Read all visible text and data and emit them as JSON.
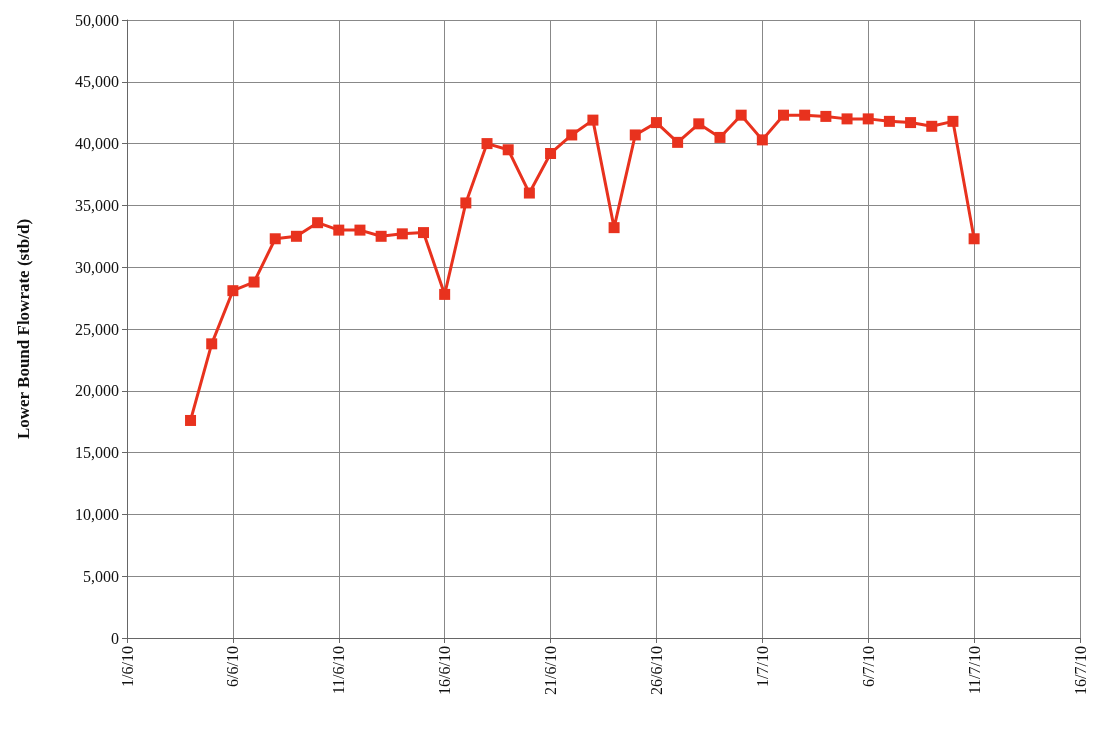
{
  "chart_data": {
    "type": "line",
    "ylabel": "Lower Bound Flowrate (stb/d)",
    "x": [
      "--06-04",
      "--06-05",
      "--06-06",
      "--06-07",
      "--06-08",
      "--06-09",
      "--06-10",
      "--06-11",
      "--06-12",
      "--06-13",
      "--06-14",
      "--06-15",
      "--06-16",
      "--06-17",
      "--06-18",
      "--06-19",
      "--06-20",
      "--06-21",
      "--06-22",
      "--06-23",
      "--06-24",
      "--06-25",
      "--06-26",
      "--06-27",
      "--06-28",
      "--06-29",
      "--06-30",
      "--07-01",
      "--07-02",
      "--07-03",
      "--07-04",
      "--07-05",
      "--07-06",
      "--07-07",
      "--07-08",
      "--07-09",
      "--07-10",
      "--07-11"
    ],
    "series": [
      {
        "color": "#e8321e",
        "values": [
          17600,
          23800,
          28100,
          28800,
          32300,
          32500,
          33600,
          33000,
          33000,
          32500,
          32700,
          32800,
          27800,
          35200,
          40000,
          39500,
          36000,
          39200,
          40700,
          41900,
          33200,
          40700,
          41700,
          40100,
          41600,
          40500,
          42300,
          40300,
          42300,
          42300,
          42200,
          42000,
          42000,
          41800,
          41700,
          41400,
          41800,
          32300
        ]
      }
    ],
    "xlim": [
      "--06-01",
      "--07-16"
    ],
    "xticks": [
      {
        "value": "--06-01",
        "label": "1/6/10"
      },
      {
        "value": "--06-06",
        "label": "6/6/10"
      },
      {
        "value": "--06-11",
        "label": "11/6/10"
      },
      {
        "value": "--06-16",
        "label": "16/6/10"
      },
      {
        "value": "--06-21",
        "label": "21/6/10"
      },
      {
        "value": "--06-26",
        "label": "26/6/10"
      },
      {
        "value": "--07-01",
        "label": "1/7/10"
      },
      {
        "value": "--07-06",
        "label": "6/7/10"
      },
      {
        "value": "--07-11",
        "label": "11/7/10"
      },
      {
        "value": "--07-16",
        "label": "16/7/10"
      }
    ],
    "ylim": [
      0,
      50000
    ],
    "yticks": [
      {
        "value": 0,
        "label": "0"
      },
      {
        "value": 5000,
        "label": "5,000"
      },
      {
        "value": 10000,
        "label": "10,000"
      },
      {
        "value": 15000,
        "label": "15,000"
      },
      {
        "value": 20000,
        "label": "20,000"
      },
      {
        "value": 25000,
        "label": "25,000"
      },
      {
        "value": 30000,
        "label": "30,000"
      },
      {
        "value": 35000,
        "label": "35,000"
      },
      {
        "value": 40000,
        "label": "40,000"
      },
      {
        "value": 45000,
        "label": "45,000"
      },
      {
        "value": 50000,
        "label": "50,000"
      }
    ],
    "grid": true,
    "marker": "square",
    "line_style": "solid"
  }
}
